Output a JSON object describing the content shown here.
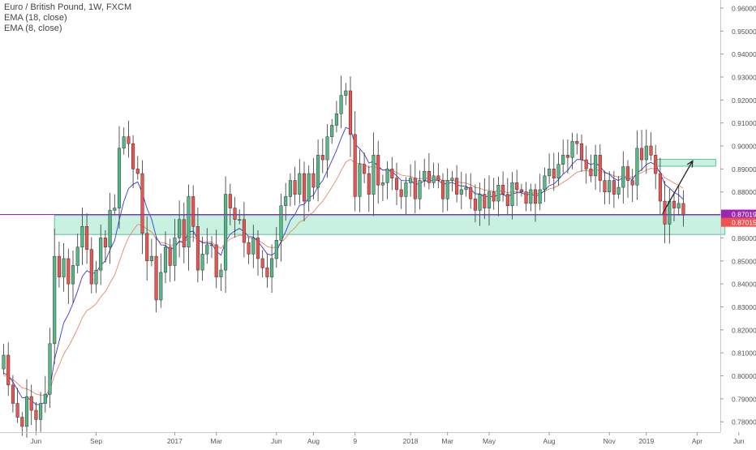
{
  "legend": {
    "title": "Euro / British Pound, 1W, FXCM",
    "ema1": "EMA (18, close)",
    "ema2": "EMA (8, close)"
  },
  "colors": {
    "up": "#26a69a",
    "up_fill": "#53b987",
    "down": "#ef5350",
    "ema18": "#e8866a",
    "ema8": "#3a3ad4",
    "hline": "#9c27b0",
    "zone_fill": "#b2ebd4",
    "zone_stroke": "#5fbf9a",
    "arrow": "#222222"
  },
  "chart_data": {
    "type": "candlestick",
    "symbol": "EURGBP",
    "timeframe": "1W",
    "ylim": [
      0.775,
      0.965
    ],
    "y_ticks": [
      "0.96000",
      "0.95000",
      "0.94000",
      "0.93000",
      "0.92000",
      "0.91000",
      "0.90000",
      "0.89000",
      "0.88000",
      "0.87000",
      "0.86000",
      "0.85000",
      "0.84000",
      "0.83000",
      "0.82000",
      "0.81000",
      "0.80000",
      "0.79000",
      "0.78000"
    ],
    "x_ticks": [
      {
        "label": "Jun",
        "i": 7
      },
      {
        "label": "Sep",
        "i": 20
      },
      {
        "label": "2017",
        "i": 37
      },
      {
        "label": "Mar",
        "i": 46
      },
      {
        "label": "Jun",
        "i": 59
      },
      {
        "label": "Aug",
        "i": 67
      },
      {
        "label": "9",
        "i": 76
      },
      {
        "label": "2018",
        "i": 88
      },
      {
        "label": "Mar",
        "i": 96
      },
      {
        "label": "May",
        "i": 105
      },
      {
        "label": "Aug",
        "i": 118
      },
      {
        "label": "Nov",
        "i": 131
      },
      {
        "label": "2019",
        "i": 139
      },
      {
        "label": "Apr",
        "i": 150
      },
      {
        "label": "Jun",
        "i": 159
      }
    ],
    "price_labels": [
      {
        "text": "0.87019",
        "value": 0.87019,
        "color": "#9c27b0"
      },
      {
        "text": "0.87015",
        "value": 0.87015,
        "color": "#ef5350"
      }
    ],
    "support_level": 0.87019,
    "zones": [
      {
        "from_i": 11,
        "to_i": 156,
        "low": 0.8615,
        "high": 0.8698
      },
      {
        "from_i": 141,
        "to_i": 154,
        "low": 0.8912,
        "high": 0.8942
      }
    ],
    "arrow": {
      "from": [
        142.5,
        0.8705
      ],
      "to": [
        149,
        0.8935
      ]
    },
    "closes": [
      0.809,
      0.796,
      0.788,
      0.782,
      0.778,
      0.791,
      0.785,
      0.781,
      0.788,
      0.792,
      0.814,
      0.852,
      0.843,
      0.851,
      0.84,
      0.848,
      0.856,
      0.865,
      0.855,
      0.84,
      0.846,
      0.86,
      0.856,
      0.872,
      0.873,
      0.899,
      0.904,
      0.901,
      0.89,
      0.888,
      0.862,
      0.85,
      0.852,
      0.833,
      0.845,
      0.856,
      0.848,
      0.86,
      0.868,
      0.856,
      0.878,
      0.865,
      0.846,
      0.853,
      0.857,
      0.857,
      0.843,
      0.846,
      0.879,
      0.873,
      0.868,
      0.868,
      0.858,
      0.853,
      0.86,
      0.851,
      0.847,
      0.843,
      0.851,
      0.859,
      0.874,
      0.878,
      0.885,
      0.879,
      0.888,
      0.876,
      0.888,
      0.882,
      0.896,
      0.894,
      0.904,
      0.909,
      0.914,
      0.922,
      0.924,
      0.905,
      0.878,
      0.892,
      0.888,
      0.879,
      0.896,
      0.883,
      0.884,
      0.89,
      0.886,
      0.881,
      0.878,
      0.884,
      0.886,
      0.877,
      0.885,
      0.889,
      0.884,
      0.887,
      0.885,
      0.877,
      0.885,
      0.886,
      0.879,
      0.881,
      0.882,
      0.877,
      0.872,
      0.879,
      0.873,
      0.88,
      0.876,
      0.883,
      0.879,
      0.874,
      0.884,
      0.881,
      0.88,
      0.875,
      0.881,
      0.875,
      0.881,
      0.887,
      0.89,
      0.886,
      0.892,
      0.896,
      0.895,
      0.902,
      0.901,
      0.894,
      0.89,
      0.887,
      0.896,
      0.885,
      0.88,
      0.885,
      0.879,
      0.882,
      0.891,
      0.885,
      0.883,
      0.899,
      0.894,
      0.9,
      0.896,
      0.888,
      0.876,
      0.866,
      0.876,
      0.873,
      0.875,
      0.87
    ]
  }
}
